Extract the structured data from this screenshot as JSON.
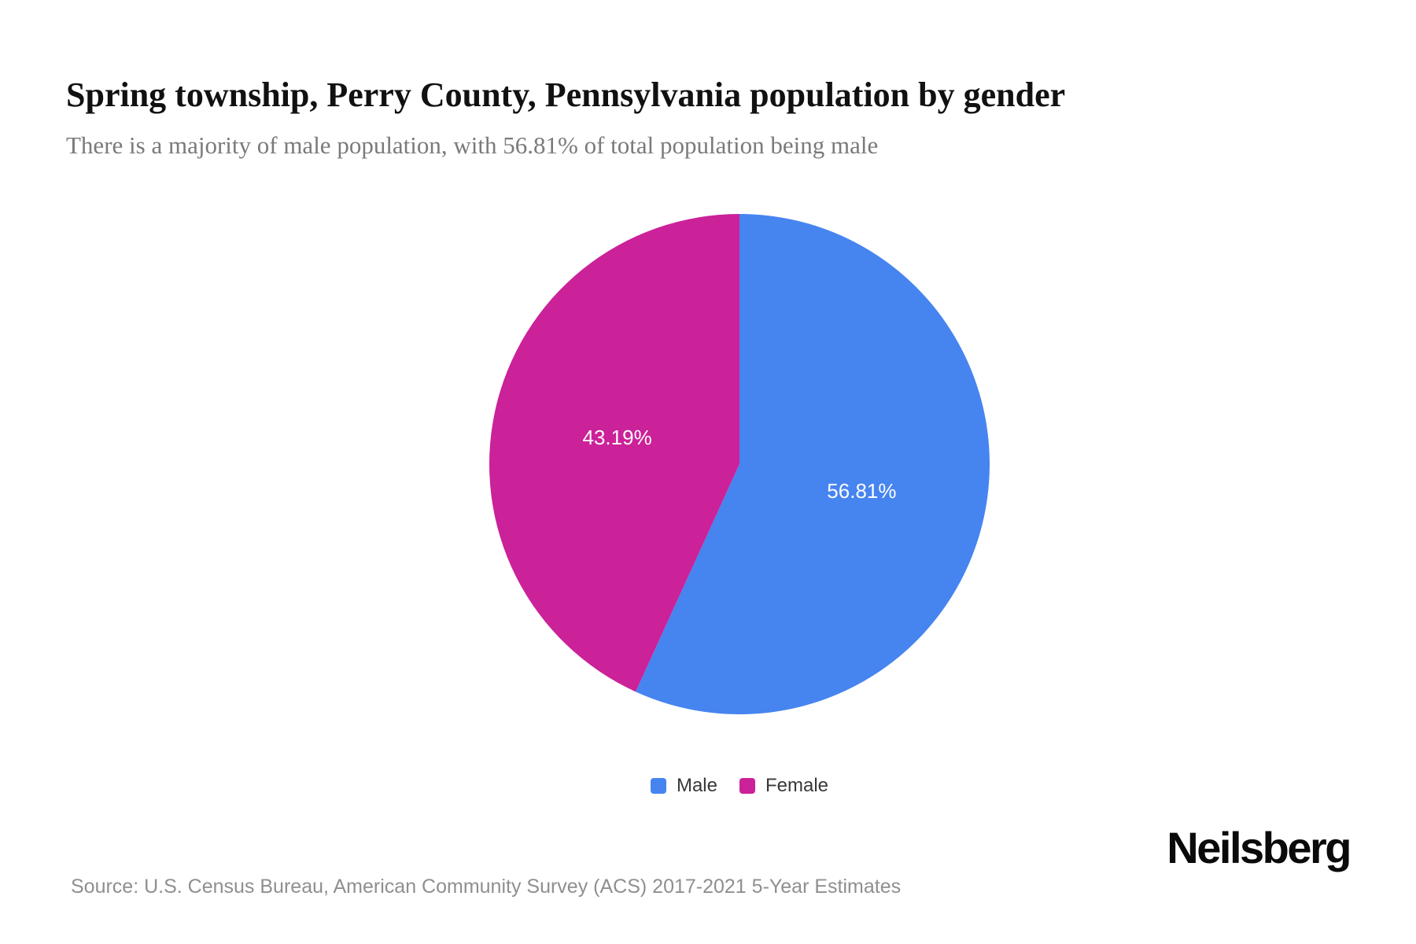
{
  "header": {
    "title": "Spring township, Perry County, Pennsylvania population by gender",
    "subtitle": "There is a majority of male population, with 56.81% of total population being male"
  },
  "chart_data": {
    "type": "pie",
    "title": "Spring township, Perry County, Pennsylvania population by gender",
    "start_angle": "top",
    "direction": "clockwise",
    "label_position": "inside",
    "label_radius_ratio": 0.5,
    "label_color": "#fdfdfd",
    "legend_position": "bottom",
    "slices": [
      {
        "label": "Male",
        "value": 56.81,
        "display_value": "56.81%",
        "color": "#4684F0"
      },
      {
        "label": "Female",
        "value": 43.19,
        "display_value": "43.19%",
        "color": "#CB2199"
      }
    ]
  },
  "footer": {
    "source": "Source: U.S. Census Bureau, American Community Survey (ACS) 2017-2021 5-Year Estimates",
    "brand": "Neilsberg"
  },
  "colors": {
    "male_blue": "#4684F0",
    "female_magenta": "#CB2199",
    "title_text": "#111111",
    "subtitle_text": "#7a7a7a",
    "source_text": "#8f8f8f",
    "background": "#ffffff"
  }
}
